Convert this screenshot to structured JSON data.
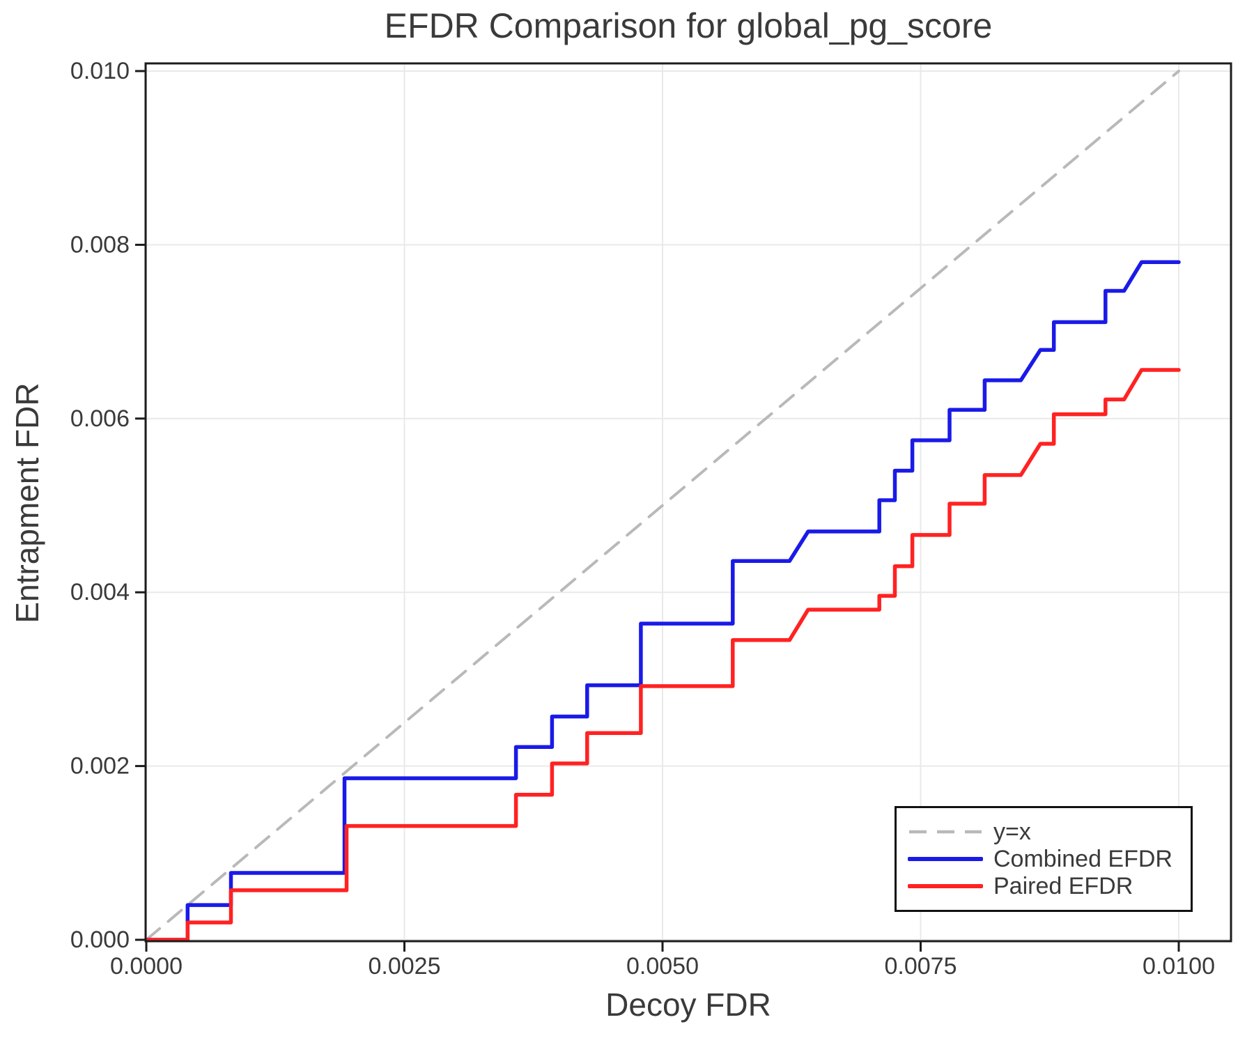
{
  "chart_data": {
    "type": "line",
    "title": "EFDR Comparison for global_pg_score",
    "xlabel": "Decoy FDR",
    "ylabel": "Entrapment FDR",
    "xlim": [
      0,
      0.0105
    ],
    "ylim": [
      0,
      0.0101
    ],
    "grid": true,
    "legend_position": "bottom-right",
    "x_ticks": {
      "values": [
        0.0,
        0.0025,
        0.005,
        0.0075,
        0.01
      ],
      "labels": [
        "0.0000",
        "0.0025",
        "0.0050",
        "0.0075",
        "0.0100"
      ]
    },
    "y_ticks": {
      "values": [
        0.0,
        0.002,
        0.004,
        0.006,
        0.008,
        0.01
      ],
      "labels": [
        "0.000",
        "0.002",
        "0.004",
        "0.006",
        "0.008",
        "0.010"
      ]
    },
    "colors": {
      "grid": "#e9e9e9",
      "spine": "#1c1c1c",
      "tick": "#1c1c1c",
      "text": "#3a3a3a"
    },
    "series": [
      {
        "name": "y=x",
        "style": "dashed",
        "color": "#b9b9b9",
        "width": 4,
        "points": [
          [
            0,
            0
          ],
          [
            0.01,
            0.01
          ]
        ]
      },
      {
        "name": "Combined EFDR",
        "style": "solid",
        "color": "#1a1ae8",
        "width": 5.5,
        "points": [
          [
            0,
            0
          ],
          [
            0.0004,
            0
          ],
          [
            0.0004,
            0.0004
          ],
          [
            0.00082,
            0.0004
          ],
          [
            0.00082,
            0.00077
          ],
          [
            0.00192,
            0.00077
          ],
          [
            0.00192,
            0.00186
          ],
          [
            0.00358,
            0.00186
          ],
          [
            0.00358,
            0.00222
          ],
          [
            0.00393,
            0.00222
          ],
          [
            0.00393,
            0.00257
          ],
          [
            0.00427,
            0.00257
          ],
          [
            0.00427,
            0.00293
          ],
          [
            0.00479,
            0.00293
          ],
          [
            0.00479,
            0.00364
          ],
          [
            0.00568,
            0.00364
          ],
          [
            0.00568,
            0.00436
          ],
          [
            0.00623,
            0.00436
          ],
          [
            0.00641,
            0.0047
          ],
          [
            0.0071,
            0.0047
          ],
          [
            0.0071,
            0.00506
          ],
          [
            0.00725,
            0.00506
          ],
          [
            0.00725,
            0.0054
          ],
          [
            0.00742,
            0.0054
          ],
          [
            0.00742,
            0.00575
          ],
          [
            0.00778,
            0.00575
          ],
          [
            0.00778,
            0.0061
          ],
          [
            0.00812,
            0.0061
          ],
          [
            0.00812,
            0.00644
          ],
          [
            0.00847,
            0.00644
          ],
          [
            0.00866,
            0.00679
          ],
          [
            0.00879,
            0.00679
          ],
          [
            0.00879,
            0.00711
          ],
          [
            0.00929,
            0.00711
          ],
          [
            0.00929,
            0.00747
          ],
          [
            0.00947,
            0.00747
          ],
          [
            0.00964,
            0.0078
          ],
          [
            0.01,
            0.0078
          ]
        ]
      },
      {
        "name": "Paired EFDR",
        "style": "solid",
        "color": "#ff2222",
        "width": 5.5,
        "points": [
          [
            0,
            0
          ],
          [
            0.0004,
            0
          ],
          [
            0.0004,
            0.0002
          ],
          [
            0.00082,
            0.0002
          ],
          [
            0.00082,
            0.00057
          ],
          [
            0.00194,
            0.00057
          ],
          [
            0.00194,
            0.00131
          ],
          [
            0.00358,
            0.00131
          ],
          [
            0.00358,
            0.00167
          ],
          [
            0.00393,
            0.00167
          ],
          [
            0.00393,
            0.00203
          ],
          [
            0.00427,
            0.00203
          ],
          [
            0.00427,
            0.00238
          ],
          [
            0.00479,
            0.00238
          ],
          [
            0.00479,
            0.00292
          ],
          [
            0.00568,
            0.00292
          ],
          [
            0.00568,
            0.00345
          ],
          [
            0.00623,
            0.00345
          ],
          [
            0.00641,
            0.0038
          ],
          [
            0.0071,
            0.0038
          ],
          [
            0.0071,
            0.00396
          ],
          [
            0.00725,
            0.00396
          ],
          [
            0.00725,
            0.0043
          ],
          [
            0.00742,
            0.0043
          ],
          [
            0.00742,
            0.00466
          ],
          [
            0.00778,
            0.00466
          ],
          [
            0.00778,
            0.00502
          ],
          [
            0.00812,
            0.00502
          ],
          [
            0.00812,
            0.00535
          ],
          [
            0.00847,
            0.00535
          ],
          [
            0.00866,
            0.00571
          ],
          [
            0.00879,
            0.00571
          ],
          [
            0.00879,
            0.00605
          ],
          [
            0.00929,
            0.00605
          ],
          [
            0.00929,
            0.00622
          ],
          [
            0.00947,
            0.00622
          ],
          [
            0.00964,
            0.00656
          ],
          [
            0.01,
            0.00656
          ]
        ]
      }
    ]
  },
  "legend": {
    "entries": [
      {
        "label": "y=x"
      },
      {
        "label": "Combined EFDR"
      },
      {
        "label": "Paired EFDR"
      }
    ]
  }
}
